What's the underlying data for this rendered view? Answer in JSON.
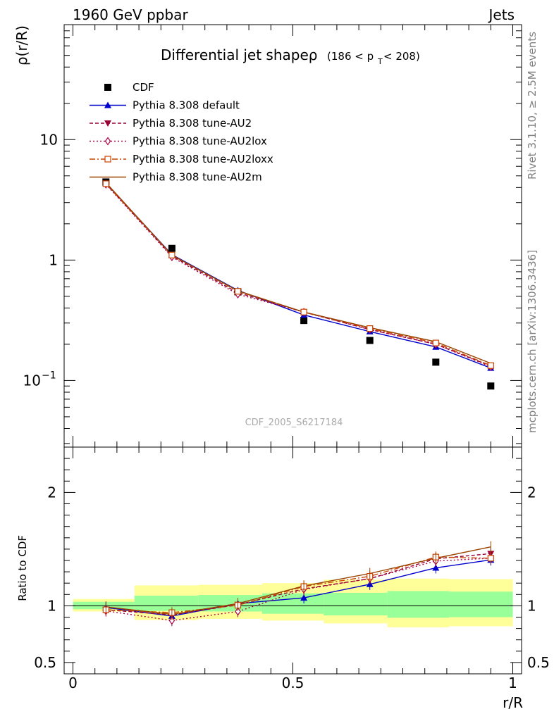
{
  "header": {
    "left": "1960 GeV ppbar",
    "right": "Jets"
  },
  "side": {
    "rivet": "Rivet 3.1.10, ≥ 2.5M events",
    "source": "mcplots.cern.ch [arXiv:1306.3436]"
  },
  "title": {
    "main": "Differential jet shapeρ",
    "range_pre": "(186 < p",
    "range_sub": "T",
    "range_post": " < 208)"
  },
  "watermark": "CDF_2005_S6217184",
  "chart_data": [
    {
      "type": "line",
      "ylabel": "ρ(r/R)",
      "yscale": "log",
      "ylim": [
        0.028,
        90
      ],
      "xlim": [
        -0.02,
        1.02
      ],
      "ytick_labels": [
        "10",
        "1",
        "10⁻¹"
      ],
      "x": [
        0.075,
        0.225,
        0.375,
        0.525,
        0.675,
        0.825,
        0.95
      ],
      "series": [
        {
          "name": "CDF",
          "style": "data",
          "color": "#000000",
          "marker": "square-filled",
          "values": [
            4.45,
            1.25,
            0.545,
            0.315,
            0.215,
            0.142,
            0.09
          ]
        },
        {
          "name": "Pythia 8.308 default",
          "color": "#0000cc",
          "marker": "triangle-up-filled",
          "dash": "",
          "values": [
            4.35,
            1.11,
            0.56,
            0.35,
            0.255,
            0.19,
            0.127
          ]
        },
        {
          "name": "Pythia 8.308 tune-AU2",
          "color": "#990033",
          "marker": "triangle-down-filled",
          "dash": "5,3",
          "values": [
            4.3,
            1.08,
            0.535,
            0.37,
            0.265,
            0.2,
            0.132
          ]
        },
        {
          "name": "Pythia 8.308 tune-AU2lox",
          "color": "#aa0044",
          "marker": "diamond-open",
          "dash": "2,3",
          "values": [
            4.25,
            1.06,
            0.52,
            0.37,
            0.265,
            0.2,
            0.13
          ]
        },
        {
          "name": "Pythia 8.308 tune-AU2loxx",
          "color": "#cc4400",
          "marker": "square-open",
          "dash": "8,3,2,3",
          "values": [
            4.3,
            1.1,
            0.55,
            0.37,
            0.27,
            0.205,
            0.133
          ]
        },
        {
          "name": "Pythia 8.308 tune-AU2m",
          "color": "#994400",
          "marker": "none",
          "dash": "",
          "values": [
            4.4,
            1.1,
            0.555,
            0.37,
            0.275,
            0.21,
            0.139
          ]
        }
      ]
    },
    {
      "type": "line",
      "ylabel": "Ratio to CDF",
      "xlabel": "r/R",
      "ylim": [
        0.4,
        2.4
      ],
      "xlim": [
        -0.02,
        1.02
      ],
      "xtick_labels": [
        "0",
        "0.5",
        "1"
      ],
      "ytick_labels": [
        "2",
        "1",
        "0.5"
      ],
      "reference_line": 1,
      "uncertainty_bands": {
        "bins": [
          [
            0,
            0.14
          ],
          [
            0.14,
            0.285
          ],
          [
            0.285,
            0.43
          ],
          [
            0.43,
            0.57
          ],
          [
            0.57,
            0.715
          ],
          [
            0.715,
            0.855
          ],
          [
            0.855,
            1.0
          ]
        ],
        "inner": [
          [
            0.97,
            1.035
          ],
          [
            0.955,
            1.09
          ],
          [
            0.95,
            1.095
          ],
          [
            0.93,
            1.11
          ],
          [
            0.915,
            1.115
          ],
          [
            0.895,
            1.13
          ],
          [
            0.9,
            1.125
          ]
        ],
        "outer": [
          [
            0.95,
            1.06
          ],
          [
            0.875,
            1.18
          ],
          [
            0.885,
            1.185
          ],
          [
            0.87,
            1.2
          ],
          [
            0.845,
            1.23
          ],
          [
            0.81,
            1.24
          ],
          [
            0.82,
            1.235
          ]
        ],
        "inner_color": "#99ff99",
        "outer_color": "#ffff99"
      },
      "series": [
        {
          "name": "Pythia 8.308 default",
          "values": [
            0.985,
            0.91,
            1.02,
            1.07,
            1.19,
            1.335,
            1.405
          ]
        },
        {
          "name": "Pythia 8.308 tune-AU2",
          "values": [
            0.965,
            0.92,
            1.01,
            1.15,
            1.24,
            1.415,
            1.46
          ]
        },
        {
          "name": "Pythia 8.308 tune-AU2lox",
          "values": [
            0.955,
            0.87,
            0.95,
            1.145,
            1.24,
            1.395,
            1.42
          ]
        },
        {
          "name": "Pythia 8.308 tune-AU2loxx",
          "values": [
            0.965,
            0.94,
            1.005,
            1.17,
            1.26,
            1.43,
            1.42
          ]
        },
        {
          "name": "Pythia 8.308 tune-AU2m",
          "values": [
            0.99,
            0.925,
            1.02,
            1.175,
            1.285,
            1.42,
            1.52
          ]
        }
      ]
    }
  ]
}
